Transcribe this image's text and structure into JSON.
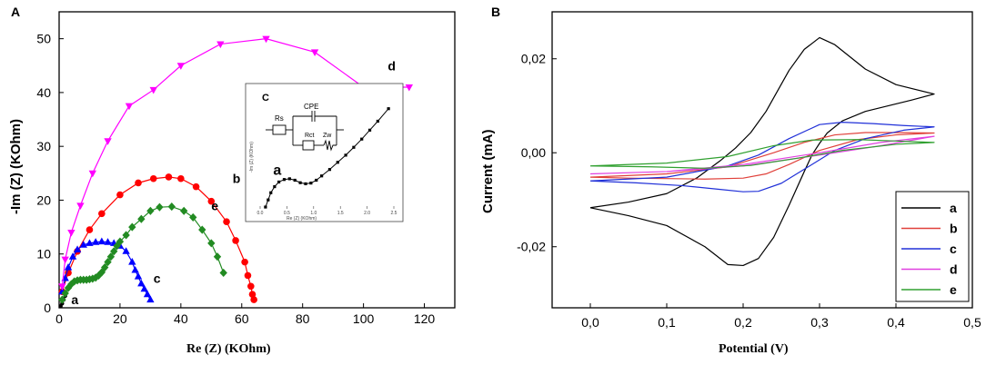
{
  "panels": {
    "A": "A",
    "B": "B",
    "C": "C"
  },
  "chart_data": [
    {
      "type": "scatter",
      "panel": "A",
      "title": "",
      "xlabel": "Re (Z) (KOhm)",
      "ylabel": "-Im (Z) (KOhm)",
      "xlim": [
        0,
        130
      ],
      "ylim": [
        0,
        55
      ],
      "xticks": [
        "0",
        "20",
        "40",
        "60",
        "80",
        "100",
        "120"
      ],
      "yticks": [
        "0",
        "10",
        "20",
        "30",
        "40",
        "50"
      ],
      "series": [
        {
          "name": "a",
          "color": "#000000",
          "marker": "circle",
          "x": [
            0.5,
            1.0,
            1.5,
            2.0
          ],
          "y": [
            0.3,
            0.8,
            1.5,
            2.2
          ]
        },
        {
          "name": "b",
          "color": "#ff0000",
          "marker": "circle",
          "x": [
            1,
            3,
            6,
            10,
            14,
            20,
            26,
            31,
            36,
            40,
            45,
            50,
            55,
            58,
            61,
            62,
            63,
            63.5,
            64
          ],
          "y": [
            3,
            6.5,
            10.5,
            14.5,
            17.5,
            21,
            23.2,
            24,
            24.3,
            24,
            22.5,
            19.8,
            16,
            12.5,
            8.5,
            6,
            4,
            2.5,
            1.5
          ]
        },
        {
          "name": "c",
          "color": "#0000ff",
          "marker": "triangle",
          "x": [
            1,
            2,
            3,
            4.5,
            6,
            8,
            10,
            12,
            14,
            16,
            18,
            20,
            22,
            24,
            25,
            26,
            27,
            28,
            29,
            30
          ],
          "y": [
            3,
            5.5,
            7.5,
            9.5,
            10.8,
            11.7,
            12,
            12.2,
            12.3,
            12.2,
            12,
            11.5,
            10.5,
            8.5,
            7,
            5.8,
            4.5,
            3.5,
            2.5,
            1.5
          ]
        },
        {
          "name": "d",
          "color": "#ff00ff",
          "marker": "triangle-down",
          "x": [
            1,
            2,
            4,
            7,
            11,
            16,
            23,
            31,
            40,
            53,
            68,
            84,
            100,
            115
          ],
          "y": [
            4,
            9,
            14,
            19,
            25,
            31,
            37.5,
            40.5,
            45,
            49,
            50,
            47.5,
            41,
            41
          ]
        },
        {
          "name": "e",
          "color": "#228b22",
          "marker": "diamond",
          "x": [
            1,
            2,
            3,
            4,
            5,
            6,
            7,
            8,
            9,
            10,
            11,
            12,
            13,
            14,
            15,
            16,
            17,
            18,
            19,
            20,
            22,
            24,
            27,
            30,
            33,
            37,
            41,
            44,
            47,
            50,
            52,
            54
          ],
          "y": [
            1.5,
            2.7,
            3.7,
            4.4,
            4.9,
            5.1,
            5.2,
            5.2,
            5.2,
            5.3,
            5.4,
            5.6,
            6,
            6.6,
            7.5,
            8.5,
            9.5,
            10.5,
            11.5,
            12.3,
            13.5,
            15,
            16.5,
            18,
            18.7,
            18.8,
            18,
            16.8,
            14.5,
            12,
            9.5,
            6.5
          ]
        }
      ],
      "annotations": [
        {
          "text": "a",
          "x": 4,
          "y": 1.5
        },
        {
          "text": "b",
          "x": 57,
          "y": 24
        },
        {
          "text": "c",
          "x": 31,
          "y": 5.5
        },
        {
          "text": "d",
          "x": 108,
          "y": 45
        },
        {
          "text": "e",
          "x": 50,
          "y": 19
        }
      ]
    },
    {
      "type": "scatter",
      "panel": "C",
      "title": "",
      "xlabel": "Re (Z) (KOhm)",
      "ylabel": "-Im (Z) (KOhm)",
      "xticks": [
        "0.0",
        "0.5",
        "1.0",
        "1.5",
        "2.0",
        "2.5"
      ],
      "yticks": [],
      "circuit": {
        "labels": [
          "Rs",
          "CPE",
          "Rct",
          "Zw"
        ]
      },
      "series": [
        {
          "name": "a",
          "color": "#000000",
          "marker": "square",
          "x": [
            0.1,
            0.15,
            0.2,
            0.27,
            0.35,
            0.45,
            0.55,
            0.65,
            0.75,
            0.85,
            0.95,
            1.05,
            1.15,
            1.3,
            1.45,
            1.6,
            1.75,
            1.9,
            2.05,
            2.2,
            2.4
          ],
          "y": [
            0.05,
            0.25,
            0.45,
            0.62,
            0.75,
            0.82,
            0.84,
            0.8,
            0.73,
            0.7,
            0.72,
            0.8,
            0.92,
            1.1,
            1.3,
            1.5,
            1.72,
            1.95,
            2.2,
            2.45,
            2.8
          ]
        }
      ],
      "annotations": [
        {
          "text": "a",
          "x": 0.55,
          "y": 1.0
        }
      ]
    },
    {
      "type": "line",
      "panel": "B",
      "title": "",
      "xlabel": "Potential (V)",
      "ylabel": "Current (mA)",
      "xlim": [
        -0.05,
        0.5
      ],
      "ylim": [
        -0.033,
        0.03
      ],
      "xticks": [
        "0,0",
        "0,1",
        "0,2",
        "0,3",
        "0,4",
        "0,5"
      ],
      "yticks": [
        "-0,02",
        "0,00",
        "0,02"
      ],
      "legend_position": "bottom-right",
      "series": [
        {
          "name": "a",
          "color": "#000000",
          "x": [
            0,
            0.05,
            0.1,
            0.14,
            0.17,
            0.19,
            0.21,
            0.23,
            0.26,
            0.28,
            0.3,
            0.32,
            0.36,
            0.4,
            0.45,
            0.42,
            0.36,
            0.33,
            0.31,
            0.3,
            0.29,
            0.28,
            0.26,
            0.24,
            0.22,
            0.2,
            0.18,
            0.15,
            0.1,
            0.05,
            0
          ],
          "y": [
            -0.0117,
            -0.0105,
            -0.0087,
            -0.0053,
            -0.0017,
            0.001,
            0.0043,
            0.0088,
            0.0175,
            0.022,
            0.0245,
            0.023,
            0.0178,
            0.0145,
            0.0125,
            0.0112,
            0.0088,
            0.0068,
            0.0042,
            0.002,
            -0.0005,
            -0.004,
            -0.0112,
            -0.018,
            -0.0225,
            -0.024,
            -0.0238,
            -0.02,
            -0.0155,
            -0.0134,
            -0.0117
          ]
        },
        {
          "name": "b",
          "color": "#e0403a",
          "x": [
            0,
            0.1,
            0.18,
            0.24,
            0.28,
            0.32,
            0.36,
            0.4,
            0.45,
            0.4,
            0.35,
            0.3,
            0.26,
            0.23,
            0.2,
            0.15,
            0.1,
            0.05,
            0
          ],
          "y": [
            -0.0052,
            -0.0045,
            -0.003,
            0,
            0.0022,
            0.0038,
            0.0043,
            0.0043,
            0.0042,
            0.0038,
            0.0028,
            0.0005,
            -0.0025,
            -0.0045,
            -0.0054,
            -0.0056,
            -0.0055,
            -0.0054,
            -0.0052
          ]
        },
        {
          "name": "c",
          "color": "#2030d8",
          "x": [
            0,
            0.1,
            0.18,
            0.22,
            0.26,
            0.3,
            0.33,
            0.37,
            0.41,
            0.45,
            0.41,
            0.36,
            0.32,
            0.28,
            0.25,
            0.22,
            0.2,
            0.17,
            0.12,
            0.06,
            0
          ],
          "y": [
            -0.006,
            -0.0052,
            -0.0028,
            -0.0005,
            0.003,
            0.006,
            0.0065,
            0.0062,
            0.0058,
            0.0055,
            0.0048,
            0.003,
            0.0005,
            -0.0035,
            -0.0065,
            -0.0082,
            -0.0083,
            -0.0078,
            -0.007,
            -0.0064,
            -0.006
          ]
        },
        {
          "name": "d",
          "color": "#e040e0",
          "x": [
            0,
            0.1,
            0.2,
            0.3,
            0.38,
            0.45,
            0.38,
            0.3,
            0.2,
            0.1,
            0
          ],
          "y": [
            -0.0045,
            -0.004,
            -0.0025,
            0,
            0.0022,
            0.0035,
            0.0015,
            -0.0005,
            -0.0028,
            -0.004,
            -0.0045
          ]
        },
        {
          "name": "e",
          "color": "#30a030",
          "x": [
            0,
            0.1,
            0.18,
            0.24,
            0.29,
            0.35,
            0.4,
            0.45,
            0.4,
            0.33,
            0.27,
            0.21,
            0.15,
            0.08,
            0
          ],
          "y": [
            -0.0028,
            -0.0022,
            -0.0008,
            0.0015,
            0.0027,
            0.0028,
            0.0025,
            0.0022,
            0.0018,
            0.0005,
            -0.0012,
            -0.0027,
            -0.0033,
            -0.003,
            -0.0028
          ]
        }
      ]
    }
  ]
}
